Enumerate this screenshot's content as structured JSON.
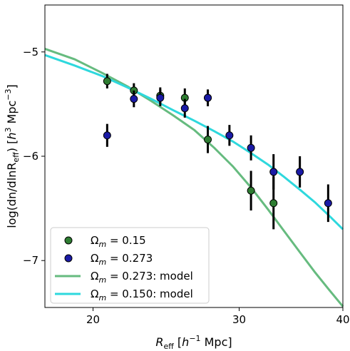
{
  "chart_data": {
    "type": "scatter",
    "xlabel_main": "R",
    "xlabel_sub": "eff",
    "xlabel_unit_open": " [",
    "xlabel_unit_h": "h",
    "xlabel_unit_exp": "−1",
    "xlabel_unit_close": " Mpc]",
    "ylabel": "log(dn/dlnR",
    "ylabel_sub": "eff",
    "ylabel_mid": ") [",
    "ylabel_h": "h",
    "ylabel_exp1": "3",
    "ylabel_unit": " Mpc",
    "ylabel_exp2": "−3",
    "ylabel_close": "]",
    "x_scale": "log",
    "xlim": [
      17.5,
      40
    ],
    "ylim": [
      -7.45,
      -4.55
    ],
    "xticks": [
      {
        "value": 20,
        "label": "20"
      },
      {
        "value": 30,
        "label": "30"
      },
      {
        "value": 40,
        "label": "40"
      }
    ],
    "yticks": [
      {
        "value": -5,
        "label": "−5"
      },
      {
        "value": -6,
        "label": "−6"
      },
      {
        "value": -7,
        "label": "−7"
      }
    ],
    "series": [
      {
        "name": "Ωm = 0.15",
        "legend_label": "Ω",
        "legend_sub": "m",
        "legend_value": " = 0.15",
        "color": "#2e7d32",
        "kind": "points",
        "points": [
          {
            "x": 20.8,
            "y": -5.28,
            "err": 0.07
          },
          {
            "x": 22.4,
            "y": -5.37,
            "err": 0.07
          },
          {
            "x": 24.1,
            "y": -5.42,
            "err": 0.08
          },
          {
            "x": 25.8,
            "y": -5.44,
            "err": 0.09
          },
          {
            "x": 27.5,
            "y": -5.44,
            "err": 0.08
          },
          {
            "x": 27.5,
            "y": -5.84,
            "err": 0.13
          },
          {
            "x": 31.0,
            "y": -6.33,
            "err": 0.19
          },
          {
            "x": 33.0,
            "y": -6.45,
            "err": 0.25
          }
        ]
      },
      {
        "name": "Ωm = 0.273",
        "legend_label": "Ω",
        "legend_sub": "m",
        "legend_value": " = 0.273",
        "color": "#1a1aa6",
        "kind": "points",
        "points": [
          {
            "x": 20.8,
            "y": -5.8,
            "err": 0.11
          },
          {
            "x": 22.4,
            "y": -5.45,
            "err": 0.08
          },
          {
            "x": 24.1,
            "y": -5.44,
            "err": 0.08
          },
          {
            "x": 25.8,
            "y": -5.54,
            "err": 0.09
          },
          {
            "x": 27.5,
            "y": -5.44,
            "err": 0.08
          },
          {
            "x": 29.2,
            "y": -5.8,
            "err": 0.1
          },
          {
            "x": 31.0,
            "y": -5.92,
            "err": 0.12
          },
          {
            "x": 33.0,
            "y": -6.15,
            "err": 0.17
          },
          {
            "x": 35.5,
            "y": -6.15,
            "err": 0.15
          },
          {
            "x": 38.4,
            "y": -6.45,
            "err": 0.18
          }
        ]
      },
      {
        "name": "Ωm = 0.273: model",
        "legend_label": "Ω",
        "legend_sub": "m",
        "legend_value": " = 0.273: model",
        "color": "#66bb7f",
        "kind": "line",
        "points": [
          {
            "x": 17.5,
            "y": -4.97
          },
          {
            "x": 19.0,
            "y": -5.07
          },
          {
            "x": 20.5,
            "y": -5.2
          },
          {
            "x": 22.0,
            "y": -5.33
          },
          {
            "x": 23.5,
            "y": -5.47
          },
          {
            "x": 25.0,
            "y": -5.61
          },
          {
            "x": 26.5,
            "y": -5.75
          },
          {
            "x": 28.0,
            "y": -5.92
          },
          {
            "x": 29.5,
            "y": -6.1
          },
          {
            "x": 31.0,
            "y": -6.3
          },
          {
            "x": 32.5,
            "y": -6.51
          },
          {
            "x": 34.0,
            "y": -6.72
          },
          {
            "x": 35.5,
            "y": -6.92
          },
          {
            "x": 37.0,
            "y": -7.11
          },
          {
            "x": 38.5,
            "y": -7.28
          },
          {
            "x": 40.0,
            "y": -7.44
          }
        ]
      },
      {
        "name": "Ωm = 0.150: model",
        "legend_label": "Ω",
        "legend_sub": "m",
        "legend_value": " = 0.150: model",
        "color": "#2ed8dd",
        "kind": "line",
        "points": [
          {
            "x": 17.5,
            "y": -5.03
          },
          {
            "x": 19.0,
            "y": -5.13
          },
          {
            "x": 20.5,
            "y": -5.23
          },
          {
            "x": 22.0,
            "y": -5.34
          },
          {
            "x": 23.5,
            "y": -5.45
          },
          {
            "x": 25.0,
            "y": -5.56
          },
          {
            "x": 26.5,
            "y": -5.66
          },
          {
            "x": 28.0,
            "y": -5.76
          },
          {
            "x": 29.5,
            "y": -5.86
          },
          {
            "x": 31.0,
            "y": -5.97
          },
          {
            "x": 32.5,
            "y": -6.08
          },
          {
            "x": 34.0,
            "y": -6.2
          },
          {
            "x": 35.5,
            "y": -6.32
          },
          {
            "x": 37.0,
            "y": -6.44
          },
          {
            "x": 38.5,
            "y": -6.57
          },
          {
            "x": 40.0,
            "y": -6.7
          }
        ]
      }
    ]
  }
}
